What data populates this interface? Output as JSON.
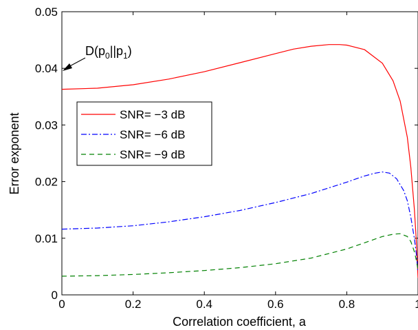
{
  "chart_data": {
    "type": "line",
    "title": "",
    "xlabel": "Correlation coefficient, a",
    "ylabel": "Error exponent",
    "xlim": [
      0,
      1
    ],
    "ylim": [
      0,
      0.05
    ],
    "xticks": [
      0,
      0.2,
      0.4,
      0.6,
      0.8,
      1
    ],
    "xtick_labels": [
      "0",
      "0.2",
      "0.4",
      "0.6",
      "0.8",
      "1"
    ],
    "yticks": [
      0,
      0.01,
      0.02,
      0.03,
      0.04,
      0.05
    ],
    "ytick_labels": [
      "0",
      "0.01",
      "0.02",
      "0.03",
      "0.04",
      "0.05"
    ],
    "grid": false,
    "legend": "upper-left",
    "series": [
      {
        "name": "SNR= −3 dB",
        "color": "#ff0000",
        "dash": "solid",
        "x": [
          0,
          0.1,
          0.2,
          0.3,
          0.4,
          0.5,
          0.6,
          0.65,
          0.7,
          0.75,
          0.78,
          0.8,
          0.85,
          0.9,
          0.93,
          0.95,
          0.97,
          0.98,
          0.99,
          0.995,
          1.0
        ],
        "y": [
          0.0363,
          0.0365,
          0.0371,
          0.0381,
          0.0394,
          0.041,
          0.0426,
          0.0434,
          0.0439,
          0.0442,
          0.0442,
          0.0441,
          0.0433,
          0.0409,
          0.0378,
          0.0342,
          0.0278,
          0.0225,
          0.015,
          0.0098,
          0.003
        ]
      },
      {
        "name": "SNR= −6 dB",
        "color": "#0000ff",
        "dash": "dashdot",
        "x": [
          0,
          0.1,
          0.2,
          0.3,
          0.4,
          0.5,
          0.6,
          0.7,
          0.8,
          0.85,
          0.88,
          0.9,
          0.92,
          0.94,
          0.96,
          0.97,
          0.98,
          0.99,
          0.995,
          1.0
        ],
        "y": [
          0.0116,
          0.0118,
          0.0122,
          0.0129,
          0.0138,
          0.0149,
          0.0163,
          0.0179,
          0.0199,
          0.021,
          0.0215,
          0.0217,
          0.0215,
          0.0205,
          0.0184,
          0.0166,
          0.0137,
          0.0099,
          0.0074,
          0.004
        ]
      },
      {
        "name": "SNR= −9 dB",
        "color": "#008000",
        "dash": "dashed",
        "x": [
          0,
          0.1,
          0.2,
          0.3,
          0.4,
          0.5,
          0.6,
          0.7,
          0.8,
          0.85,
          0.9,
          0.93,
          0.95,
          0.97,
          0.98,
          0.99,
          0.995,
          1.0
        ],
        "y": [
          0.0033,
          0.0034,
          0.0036,
          0.0039,
          0.0043,
          0.0048,
          0.0055,
          0.0065,
          0.0081,
          0.0092,
          0.0103,
          0.0107,
          0.0108,
          0.0103,
          0.0094,
          0.0076,
          0.0062,
          0.0045
        ]
      }
    ],
    "annotation": {
      "text_main": "D(p",
      "sub0": "0",
      "text_mid": "||p",
      "sub1": "1",
      "text_end": ")",
      "x": 0,
      "y": 0.0363
    }
  }
}
